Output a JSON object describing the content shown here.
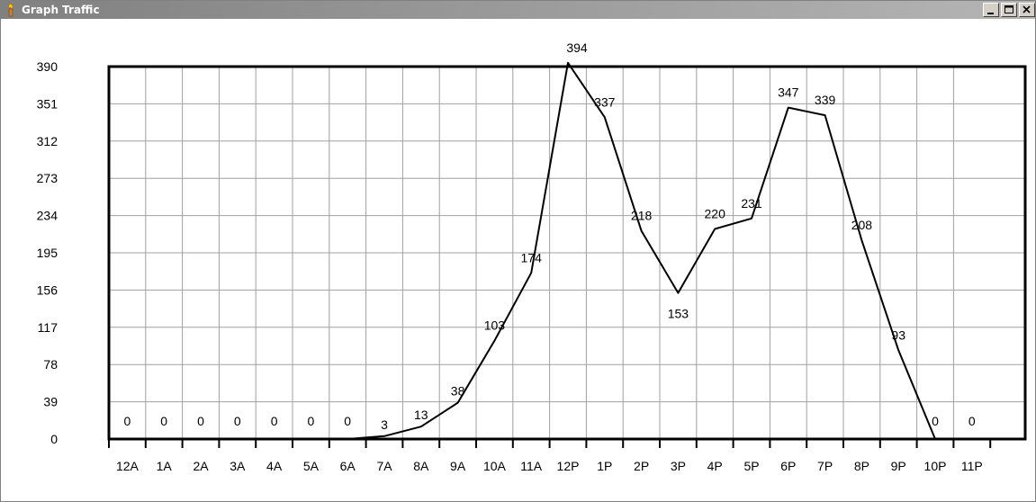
{
  "window": {
    "title": "Graph Traffic",
    "icon": "torch-icon",
    "controls": [
      "minimize-icon",
      "maximize-icon",
      "close-icon"
    ]
  },
  "chart_data": {
    "type": "line",
    "title": "",
    "xlabel": "",
    "ylabel": "",
    "categories": [
      "12A",
      "1A",
      "2A",
      "3A",
      "4A",
      "5A",
      "6A",
      "7A",
      "8A",
      "9A",
      "10A",
      "11A",
      "12P",
      "1P",
      "2P",
      "3P",
      "4P",
      "5P",
      "6P",
      "7P",
      "8P",
      "9P",
      "10P",
      "11P"
    ],
    "values": [
      0,
      0,
      0,
      0,
      0,
      0,
      0,
      3,
      13,
      38,
      103,
      174,
      394,
      337,
      218,
      153,
      220,
      231,
      347,
      339,
      208,
      93,
      0,
      0
    ],
    "data_labels": [
      "0",
      "0",
      "0",
      "0",
      "0",
      "0",
      "0",
      "3",
      "13",
      "38",
      "103",
      "174",
      "394",
      "337",
      "218",
      "153",
      "220",
      "231",
      "347",
      "339",
      "208",
      "93",
      "0",
      "0"
    ],
    "y_ticks": [
      "0",
      "39",
      "78",
      "117",
      "156",
      "195",
      "234",
      "273",
      "312",
      "351",
      "390"
    ],
    "ylim": [
      0,
      390
    ],
    "grid": true,
    "legend": "none",
    "colors": {
      "line": "#000000",
      "grid": "#a0a0a0",
      "frame": "#000000"
    }
  }
}
